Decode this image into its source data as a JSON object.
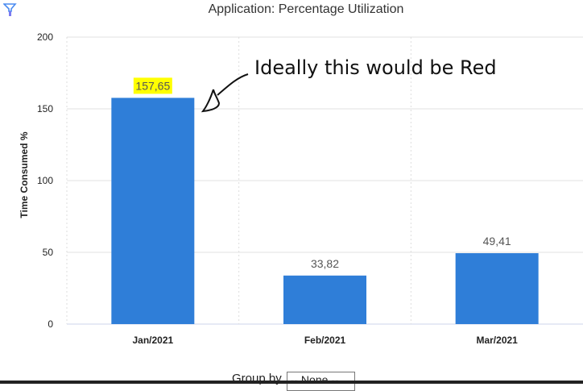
{
  "header": {
    "title": "Application: Percentage Utilization",
    "filter_icon": "filter-icon"
  },
  "annotation": "Ideally this would be Red",
  "controls": {
    "group_by_label": "Group by",
    "group_by_value": "-- None --"
  },
  "colors": {
    "bar": "#2f7ed8",
    "highlight": "#ffff00"
  },
  "chart_data": {
    "type": "bar",
    "title": "Application: Percentage Utilization",
    "xlabel": "",
    "ylabel": "Time Consumed %",
    "categories": [
      "Jan/2021",
      "Feb/2021",
      "Mar/2021"
    ],
    "values": [
      157.65,
      33.82,
      49.41
    ],
    "data_labels": [
      "157,65",
      "33,82",
      "49,41"
    ],
    "highlighted_label_index": 0,
    "ylim": [
      0,
      200
    ],
    "yticks": [
      "0",
      "50",
      "100",
      "150",
      "200"
    ],
    "grid": true,
    "legend": "none"
  }
}
